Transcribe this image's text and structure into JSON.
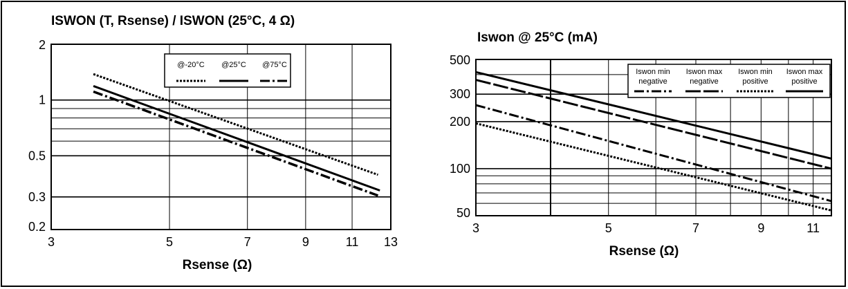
{
  "chart_data": [
    {
      "type": "line",
      "title": "ISWON (T, Rsense) / ISWON (25°C, 4 Ω)",
      "xlabel": "Rsense (Ω)",
      "ylabel": "",
      "xscale": "log",
      "yscale": "log",
      "xlim": [
        3,
        13
      ],
      "ylim": [
        0.2,
        2
      ],
      "xticks": [
        3,
        5,
        7,
        9,
        11,
        13
      ],
      "yticks": [
        0.2,
        0.3,
        0.5,
        1,
        2
      ],
      "grid": true,
      "legend_position": "top-center",
      "series": [
        {
          "name": "@-20°C",
          "style": "dotted",
          "points": [
            [
              3.6,
              1.38
            ],
            [
              12.3,
              0.395
            ]
          ]
        },
        {
          "name": "@25°C",
          "style": "solid",
          "points": [
            [
              3.6,
              1.19
            ],
            [
              12.4,
              0.325
            ]
          ]
        },
        {
          "name": "@75°C",
          "style": "dashdot",
          "points": [
            [
              3.6,
              1.11
            ],
            [
              12.3,
              0.305
            ]
          ]
        }
      ]
    },
    {
      "type": "line",
      "title": "Iswon @ 25°C (mA)",
      "xlabel": "Rsense (Ω)",
      "ylabel": "",
      "xscale": "log",
      "yscale": "log",
      "xlim": [
        3,
        11.8
      ],
      "ylim": [
        50,
        500
      ],
      "xticks": [
        3,
        5,
        7,
        9,
        11
      ],
      "yticks": [
        50,
        100,
        200,
        300,
        500
      ],
      "grid": true,
      "legend_position": "top-right",
      "series": [
        {
          "name": [
            "Iswon min",
            "negative"
          ],
          "style": "dashdot",
          "points": [
            [
              3,
              255
            ],
            [
              11.8,
              62
            ]
          ]
        },
        {
          "name": [
            "Iswon max",
            "negative"
          ],
          "style": "longdash",
          "points": [
            [
              3,
              370
            ],
            [
              11.8,
              100
            ]
          ]
        },
        {
          "name": [
            "Iswon min",
            "positive"
          ],
          "style": "dotted",
          "points": [
            [
              3,
              195
            ],
            [
              11.8,
              54
            ]
          ]
        },
        {
          "name": [
            "Iswon max",
            "positive"
          ],
          "style": "solid",
          "points": [
            [
              3,
              415
            ],
            [
              11.8,
              116
            ]
          ]
        }
      ]
    }
  ]
}
